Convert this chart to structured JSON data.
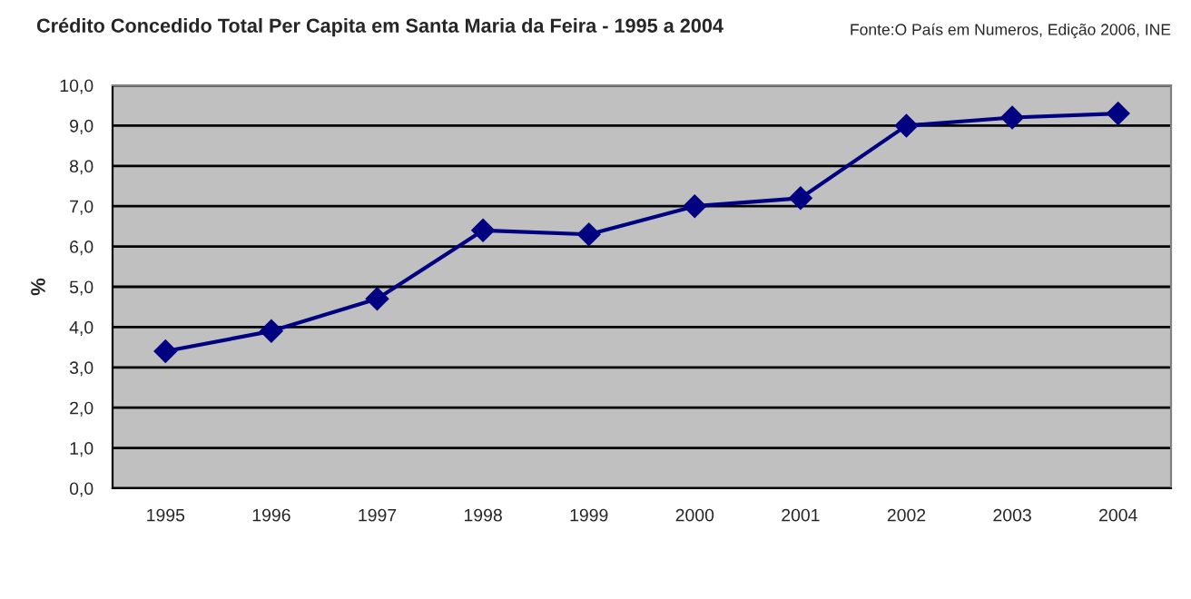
{
  "chart_data": {
    "type": "line",
    "title": "Crédito Concedido Total Per Capita em Santa Maria da Feira - 1995 a 2004",
    "annotations": [
      "Fonte:O País em Numeros, Edição 2006, INE"
    ],
    "ylabel": "%",
    "categories": [
      "1995",
      "1996",
      "1997",
      "1998",
      "1999",
      "2000",
      "2001",
      "2002",
      "2003",
      "2004"
    ],
    "series": [
      {
        "color": "#000080",
        "values": [
          3.4,
          3.9,
          4.7,
          6.4,
          6.3,
          7.0,
          7.2,
          9.0,
          9.2,
          9.3
        ]
      }
    ],
    "ylim": [
      0,
      10
    ],
    "yticks": [
      {
        "value": 0,
        "label": "0,0"
      },
      {
        "value": 1,
        "label": "1,0"
      },
      {
        "value": 2,
        "label": "2,0"
      },
      {
        "value": 3,
        "label": "3,0"
      },
      {
        "value": 4,
        "label": "4,0"
      },
      {
        "value": 5,
        "label": "5,0"
      },
      {
        "value": 6,
        "label": "6,0"
      },
      {
        "value": 7,
        "label": "7,0"
      },
      {
        "value": 8,
        "label": "8,0"
      },
      {
        "value": 9,
        "label": "9,0"
      },
      {
        "value": 10,
        "label": "10,0"
      }
    ],
    "grid": "y",
    "marker": "diamond",
    "line_style": "solid",
    "legend": false
  }
}
